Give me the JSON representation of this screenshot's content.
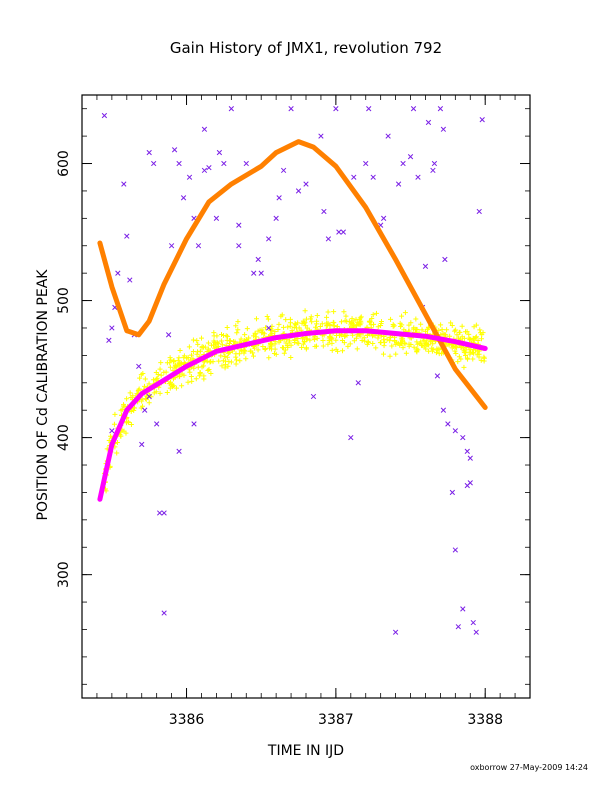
{
  "chart_data": {
    "type": "scatter",
    "title": "Gain History of JMX1, revolution 792",
    "xlabel": "TIME IN IJD",
    "ylabel": "POSITION OF Cd CALIBRATION PEAK",
    "xlim": [
      3385.3,
      3388.3
    ],
    "ylim": [
      210,
      650
    ],
    "xticks": [
      3386,
      3387,
      3388
    ],
    "yticks": [
      300,
      400,
      500,
      600
    ],
    "footer": "oxborrow 27-May-2009 14:24",
    "colors": {
      "purple_scatter": "#7a1fe6",
      "yellow_scatter": "#ffff00",
      "orange_fit": "#ff8000",
      "magenta_fit": "#ff00ff"
    },
    "series": [
      {
        "marker": "x",
        "color": "#7a1fe6",
        "points": [
          [
            3385.45,
            635
          ],
          [
            3385.48,
            471
          ],
          [
            3385.5,
            480
          ],
          [
            3385.52,
            495
          ],
          [
            3385.54,
            520
          ],
          [
            3385.58,
            585
          ],
          [
            3385.6,
            547
          ],
          [
            3385.62,
            515
          ],
          [
            3385.65,
            475
          ],
          [
            3385.68,
            452
          ],
          [
            3385.72,
            420
          ],
          [
            3385.75,
            608
          ],
          [
            3385.78,
            600
          ],
          [
            3385.8,
            410
          ],
          [
            3385.82,
            345
          ],
          [
            3385.85,
            272
          ],
          [
            3385.88,
            475
          ],
          [
            3385.9,
            540
          ],
          [
            3385.92,
            610
          ],
          [
            3385.95,
            600
          ],
          [
            3385.98,
            575
          ],
          [
            3386.02,
            590
          ],
          [
            3386.05,
            560
          ],
          [
            3386.08,
            540
          ],
          [
            3386.12,
            625
          ],
          [
            3386.15,
            597
          ],
          [
            3386.2,
            560
          ],
          [
            3386.25,
            600
          ],
          [
            3386.3,
            640
          ],
          [
            3386.35,
            555
          ],
          [
            3386.4,
            600
          ],
          [
            3386.45,
            520
          ],
          [
            3386.5,
            520
          ],
          [
            3386.55,
            480
          ],
          [
            3386.6,
            560
          ],
          [
            3386.65,
            595
          ],
          [
            3386.7,
            640
          ],
          [
            3386.75,
            580
          ],
          [
            3386.8,
            585
          ],
          [
            3386.85,
            430
          ],
          [
            3386.9,
            620
          ],
          [
            3386.95,
            545
          ],
          [
            3387.0,
            640
          ],
          [
            3387.05,
            550
          ],
          [
            3387.1,
            400
          ],
          [
            3387.15,
            440
          ],
          [
            3387.2,
            600
          ],
          [
            3387.25,
            590
          ],
          [
            3387.3,
            555
          ],
          [
            3387.35,
            620
          ],
          [
            3387.4,
            258
          ],
          [
            3387.45,
            600
          ],
          [
            3387.5,
            605
          ],
          [
            3387.55,
            590
          ],
          [
            3387.6,
            525
          ],
          [
            3387.65,
            595
          ],
          [
            3387.7,
            640
          ],
          [
            3387.72,
            420
          ],
          [
            3387.75,
            410
          ],
          [
            3387.78,
            360
          ],
          [
            3387.8,
            318
          ],
          [
            3387.82,
            262
          ],
          [
            3387.85,
            275
          ],
          [
            3387.88,
            390
          ],
          [
            3387.9,
            385
          ],
          [
            3387.92,
            265
          ],
          [
            3387.94,
            258
          ],
          [
            3387.96,
            565
          ],
          [
            3387.98,
            632
          ],
          [
            3385.7,
            395
          ],
          [
            3385.75,
            430
          ],
          [
            3385.85,
            345
          ],
          [
            3385.95,
            390
          ],
          [
            3386.05,
            410
          ],
          [
            3386.35,
            540
          ],
          [
            3386.55,
            545
          ],
          [
            3387.02,
            550
          ],
          [
            3387.58,
            495
          ],
          [
            3387.85,
            400
          ],
          [
            3387.88,
            365
          ],
          [
            3387.9,
            367
          ],
          [
            3387.8,
            405
          ],
          [
            3387.73,
            530
          ],
          [
            3387.68,
            445
          ],
          [
            3385.5,
            405
          ],
          [
            3386.12,
            595
          ],
          [
            3386.22,
            608
          ],
          [
            3386.48,
            530
          ],
          [
            3386.62,
            575
          ],
          [
            3386.92,
            565
          ],
          [
            3387.12,
            590
          ],
          [
            3387.22,
            640
          ],
          [
            3387.32,
            560
          ],
          [
            3387.42,
            585
          ],
          [
            3387.52,
            640
          ],
          [
            3387.62,
            630
          ],
          [
            3387.66,
            600
          ],
          [
            3387.72,
            625
          ]
        ]
      },
      {
        "marker": "+",
        "color": "#ffff00",
        "description_only": false
      },
      {
        "type": "line",
        "color": "#ff8000",
        "x": [
          3385.42,
          3385.5,
          3385.6,
          3385.68,
          3385.75,
          3385.85,
          3386.0,
          3386.15,
          3386.3,
          3386.5,
          3386.6,
          3386.75,
          3386.85,
          3387.0,
          3387.2,
          3387.4,
          3387.6,
          3387.8,
          3388.0
        ],
        "y": [
          542,
          510,
          478,
          475,
          485,
          512,
          545,
          572,
          585,
          598,
          608,
          616,
          612,
          598,
          568,
          530,
          490,
          450,
          422
        ]
      },
      {
        "type": "line",
        "color": "#ff00ff",
        "x": [
          3385.42,
          3385.5,
          3385.6,
          3385.7,
          3385.85,
          3386.0,
          3386.2,
          3386.4,
          3386.6,
          3386.8,
          3387.0,
          3387.2,
          3387.4,
          3387.6,
          3387.8,
          3388.0
        ],
        "y": [
          355,
          395,
          420,
          432,
          442,
          452,
          463,
          468,
          473,
          476,
          478,
          478,
          476,
          474,
          470,
          465
        ]
      }
    ]
  }
}
